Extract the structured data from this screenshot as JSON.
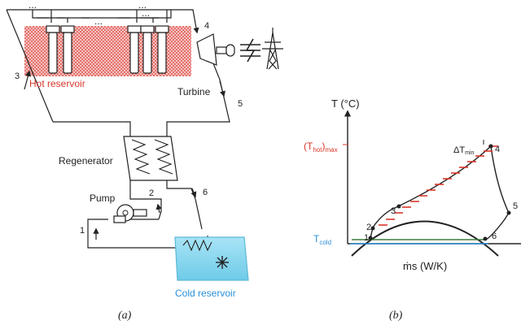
{
  "diagram_a": {
    "caption": "(a)",
    "hot_reservoir": "Hot reservoir",
    "turbine": "Turbine",
    "regenerator": "Regenerator",
    "pump": "Pump",
    "cold_reservoir": "Cold reservoir",
    "ellipsis": "...",
    "points": [
      "1",
      "2",
      "3",
      "4",
      "5",
      "6"
    ]
  },
  "diagram_b": {
    "caption": "(b)",
    "y_axis": "T (°C)",
    "x_axis": "ṁs (W/K)",
    "t_hot_max_main": "(T",
    "t_hot_max_sub": "hot",
    "t_hot_max_close": ")",
    "t_hot_max_sub2": "max",
    "t_cold_main": "T",
    "t_cold_sub": "cold",
    "delta_t_main": "ΔT",
    "delta_t_sub": "min",
    "points": [
      "1",
      "2",
      "3",
      "4",
      "5",
      "6"
    ]
  },
  "colors": {
    "hot": "#d9372b",
    "cold": "#2a8fd8",
    "cold_fill": "#8fd8f0",
    "line": "#222222"
  }
}
